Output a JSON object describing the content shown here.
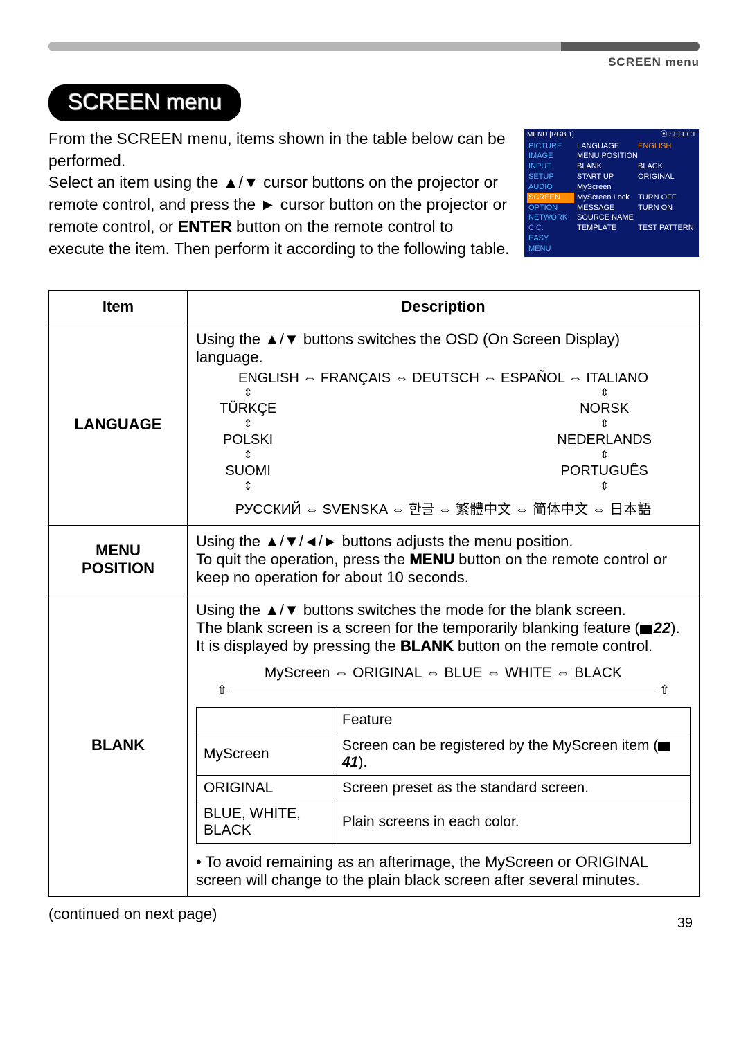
{
  "header": {
    "section_label": "SCREEN menu",
    "pill_title": "SCREEN menu"
  },
  "intro": {
    "line1": "From the SCREEN menu, items shown in the table below can be performed.",
    "line2a": "Select an item using the ▲/▼ cursor buttons on the projector or remote control, and press the ► cursor button on the projector or remote control, or ",
    "enter": "ENTER",
    "line2b": " button on the remote control to execute the item. Then perform it according to the following table."
  },
  "osd": {
    "top_left": "MENU [RGB 1]",
    "top_right": "⦿:SELECT",
    "left": [
      "PICTURE",
      "IMAGE",
      "INPUT",
      "SETUP",
      "AUDIO",
      "SCREEN",
      "OPTION",
      "NETWORK",
      "C.C.",
      "EASY MENU"
    ],
    "left_highlight_index": 5,
    "mid": [
      "LANGUAGE",
      "MENU POSITION",
      "BLANK",
      "START UP",
      "MyScreen",
      "MyScreen Lock",
      "MESSAGE",
      "SOURCE NAME",
      "TEMPLATE"
    ],
    "right": [
      "ENGLISH",
      "",
      "BLACK",
      "ORIGINAL",
      "",
      "TURN OFF",
      "TURN ON",
      "",
      "TEST PATTERN"
    ],
    "right_highlight_index": 0
  },
  "table": {
    "head_item": "Item",
    "head_desc": "Description",
    "language": {
      "item": "LANGUAGE",
      "lead": "Using the ▲/▼ buttons switches the OSD (On Screen Display) language.",
      "row_top": "ENGLISH ⇔ FRANÇAIS ⇔ DEUTSCH ⇔ ESPAÑOL ⇔ ITALIANO",
      "col_left": [
        "TÜRKÇE",
        "POLSKI",
        "SUOMI"
      ],
      "col_right": [
        "NORSK",
        "NEDERLANDS",
        "PORTUGUÊS"
      ],
      "row_bottom": "РУССКИЙ ⇔ SVENSKA ⇔ 한글 ⇔ 繁體中文 ⇔ 简体中文 ⇔ 日本語"
    },
    "menu_position": {
      "item": "MENU POSITION",
      "desc_a": "Using the ▲/▼/◄/► buttons adjusts the menu position.",
      "desc_b": "To quit the operation, press the ",
      "menu": "MENU",
      "desc_c": " button on the remote control or keep no operation for about 10 seconds."
    },
    "blank": {
      "item": "BLANK",
      "lead_a": "Using the ▲/▼ buttons switches the mode for the blank screen.",
      "lead_b": "The blank screen is a screen for the temporarily blanking feature (",
      "ref1": "22",
      "lead_c": "). It is displayed by pressing the ",
      "blankbtn": "BLANK",
      "lead_d": " button on the remote control.",
      "options": "MyScreen ⇔ ORIGINAL ⇔ BLUE ⇔ WHITE ⇔ BLACK",
      "sub": {
        "h2": "Feature",
        "r1c1": "MyScreen",
        "r1c2a": "Screen can be registered by the MyScreen item (",
        "r1ref": "41",
        "r1c2b": ").",
        "r2c1": "ORIGINAL",
        "r2c2": "Screen preset as the standard screen.",
        "r3c1": "BLUE, WHITE, BLACK",
        "r3c2": "Plain screens in each color."
      },
      "note": "• To avoid remaining as an afterimage, the MyScreen or ORIGINAL screen will change to the plain black screen after several minutes."
    }
  },
  "continued": "(continued on next page)",
  "page_number": "39"
}
